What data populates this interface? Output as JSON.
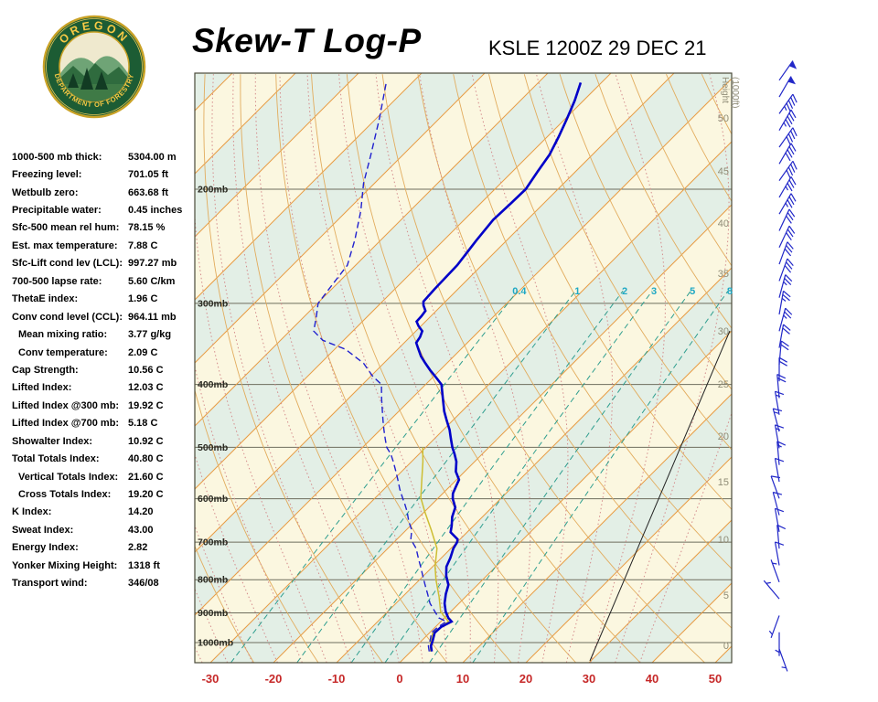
{
  "header": {
    "title": "Skew-T Log-P",
    "station": "KSLE 1200Z 29 DEC 21"
  },
  "logo": {
    "top_text": "OREGON",
    "bottom_text": "DEPARTMENT OF FORESTRY"
  },
  "stats": {
    "rows": [
      {
        "label": "1000-500 mb thick:",
        "value": "5304.00 m"
      },
      {
        "label": "Freezing level:",
        "value": "701.05 ft"
      },
      {
        "label": "Wetbulb zero:",
        "value": "663.68 ft"
      },
      {
        "label": "Precipitable water:",
        "value": "0.45 inches"
      },
      {
        "label": "Sfc-500 mean rel hum:",
        "value": "78.15 %"
      },
      {
        "label": "Est. max temperature:",
        "value": "7.88 C"
      },
      {
        "label": "Sfc-Lift cond lev (LCL):",
        "value": "997.27 mb"
      },
      {
        "label": "700-500 lapse rate:",
        "value": "5.60 C/km"
      },
      {
        "label": "ThetaE index:",
        "value": "1.96 C"
      },
      {
        "label": "Conv cond level (CCL):",
        "value": "964.11 mb"
      },
      {
        "label": "Mean mixing ratio:",
        "value": "3.77 g/kg",
        "indent": true
      },
      {
        "label": "Conv temperature:",
        "value": "2.09 C",
        "indent": true
      },
      {
        "label": "Cap Strength:",
        "value": "10.56 C"
      },
      {
        "label": "Lifted Index:",
        "value": "12.03 C"
      },
      {
        "label": "Lifted Index @300 mb:",
        "value": "19.92 C"
      },
      {
        "label": "Lifted Index @700 mb:",
        "value": "5.18 C"
      },
      {
        "label": "Showalter Index:",
        "value": "10.92 C"
      },
      {
        "label": "Total Totals Index:",
        "value": "40.80 C"
      },
      {
        "label": "Vertical Totals Index:",
        "value": "21.60 C",
        "indent": true
      },
      {
        "label": "Cross Totals Index:",
        "value": "19.20 C",
        "indent": true
      },
      {
        "label": "K Index:",
        "value": "14.20"
      },
      {
        "label": "Sweat Index:",
        "value": "43.00"
      },
      {
        "label": "Energy Index:",
        "value": "2.82"
      },
      {
        "label": "Yonker Mixing Height:",
        "value": "1318 ft"
      },
      {
        "label": "Transport wind:",
        "value": "346/08"
      }
    ]
  },
  "colors": {
    "temperature": "#0000C8",
    "dewpoint": "#2020CF",
    "wetbulb": "#CDBE33",
    "isotherm": "#E89C45",
    "dry_adiabat": "#E2AC5E",
    "moist_adiabat": "#D48C8C",
    "mixing_ratio": "#2F9E8F",
    "mixing_label": "#1FA8C4",
    "isobar": "#6E6E5E",
    "temp_tick": "#C62828",
    "height_label": "#8F8C76",
    "band_cream": "#FBF7E0",
    "band_green": "#E3EFE6",
    "wind_barb": "#2228C8",
    "frame": "#4A4A3A",
    "reference_line": "#222222",
    "pressure_label": "#2A2A22"
  },
  "chart_data": {
    "type": "line",
    "title": "Skew-T Log-P",
    "subtitle": "KSLE 1200Z 29 DEC 21",
    "x_axis": {
      "units": "C",
      "ticks": [
        -30,
        -20,
        -10,
        0,
        10,
        20,
        30,
        40,
        50
      ]
    },
    "y_axis": {
      "units": "mb",
      "scale": "log",
      "ticks": [
        200,
        300,
        400,
        500,
        600,
        700,
        800,
        900,
        1000
      ],
      "labels": [
        "200mb",
        "300mb",
        "400mb",
        "500mb",
        "600mb",
        "700mb",
        "800mb",
        "900mb",
        "1000mb"
      ]
    },
    "height_axis": {
      "title": "Height (1000ft)",
      "ticks": [
        0,
        5,
        10,
        15,
        20,
        25,
        30,
        35,
        40,
        45,
        50
      ]
    },
    "mixing_ratio_g_kg": [
      0.4,
      1,
      2,
      3,
      5,
      8
    ],
    "series": [
      {
        "name": "temperature",
        "style": "solid",
        "points": [
          [
            1032,
            3.3
          ],
          [
            1012,
            2.3
          ],
          [
            992,
            1.7
          ],
          [
            966,
            0.8
          ],
          [
            946,
            0.9
          ],
          [
            928,
            1.7
          ],
          [
            916,
            0.6
          ],
          [
            896,
            -0.8
          ],
          [
            870,
            -2.3
          ],
          [
            841,
            -3.6
          ],
          [
            815,
            -4.6
          ],
          [
            789,
            -6.4
          ],
          [
            764,
            -7.8
          ],
          [
            740,
            -8.6
          ],
          [
            716,
            -9.6
          ],
          [
            700,
            -10.0
          ],
          [
            693,
            -10.4
          ],
          [
            676,
            -12.6
          ],
          [
            660,
            -13.5
          ],
          [
            640,
            -14.8
          ],
          [
            619,
            -15.8
          ],
          [
            600,
            -17.6
          ],
          [
            589,
            -18.4
          ],
          [
            575,
            -19.0
          ],
          [
            561,
            -19.6
          ],
          [
            545,
            -21.4
          ],
          [
            526,
            -22.9
          ],
          [
            512,
            -24.4
          ],
          [
            500,
            -25.8
          ],
          [
            485,
            -27.4
          ],
          [
            470,
            -29.0
          ],
          [
            455,
            -30.9
          ],
          [
            440,
            -32.8
          ],
          [
            420,
            -35.1
          ],
          [
            400,
            -37.5
          ],
          [
            390,
            -39.5
          ],
          [
            380,
            -41.6
          ],
          [
            371,
            -43.4
          ],
          [
            362,
            -45.2
          ],
          [
            352,
            -46.9
          ],
          [
            345,
            -48.1
          ],
          [
            338,
            -48.4
          ],
          [
            331,
            -49.0
          ],
          [
            325,
            -50.4
          ],
          [
            320,
            -51.4
          ],
          [
            314,
            -51.5
          ],
          [
            308,
            -51.7
          ],
          [
            302,
            -52.9
          ],
          [
            298,
            -53.5
          ],
          [
            285,
            -53.7
          ],
          [
            262,
            -53.9
          ],
          [
            240,
            -54.8
          ],
          [
            223,
            -55.4
          ],
          [
            210,
            -55.2
          ],
          [
            200,
            -55.1
          ],
          [
            188,
            -56.0
          ],
          [
            177,
            -56.8
          ],
          [
            166,
            -58.2
          ],
          [
            156,
            -59.7
          ],
          [
            146,
            -61.4
          ],
          [
            137,
            -63.3
          ]
        ]
      },
      {
        "name": "dewpoint",
        "style": "dashed",
        "points": [
          [
            1032,
            2.9
          ],
          [
            1012,
            1.9
          ],
          [
            992,
            1.3
          ],
          [
            966,
            0.3
          ],
          [
            946,
            0.4
          ],
          [
            928,
            0.9
          ],
          [
            916,
            -0.9
          ],
          [
            896,
            -2.5
          ],
          [
            870,
            -4.6
          ],
          [
            841,
            -6.5
          ],
          [
            815,
            -8.3
          ],
          [
            789,
            -10.1
          ],
          [
            764,
            -11.9
          ],
          [
            740,
            -13.7
          ],
          [
            716,
            -15.5
          ],
          [
            693,
            -17.8
          ],
          [
            671,
            -19.1
          ],
          [
            650,
            -21.0
          ],
          [
            628,
            -22.8
          ],
          [
            612,
            -24.3
          ],
          [
            598,
            -25.7
          ],
          [
            580,
            -27.5
          ],
          [
            561,
            -29.3
          ],
          [
            543,
            -31.1
          ],
          [
            526,
            -32.9
          ],
          [
            512,
            -34.5
          ],
          [
            500,
            -36.2
          ],
          [
            485,
            -37.8
          ],
          [
            470,
            -39.4
          ],
          [
            455,
            -41.0
          ],
          [
            440,
            -42.6
          ],
          [
            420,
            -44.8
          ],
          [
            400,
            -47.0
          ],
          [
            389,
            -49.6
          ],
          [
            371,
            -53.2
          ],
          [
            353,
            -58.3
          ],
          [
            342,
            -63.3
          ],
          [
            331,
            -66.2
          ],
          [
            315,
            -68.0
          ],
          [
            300,
            -69.9
          ],
          [
            281,
            -70.6
          ],
          [
            262,
            -71.3
          ],
          [
            239,
            -74.2
          ],
          [
            216,
            -77.8
          ],
          [
            196,
            -81.7
          ],
          [
            177,
            -85.1
          ],
          [
            156,
            -89.4
          ],
          [
            137,
            -94.1
          ]
        ]
      },
      {
        "name": "wetbulb",
        "style": "solid",
        "points": [
          [
            1032,
            3.1
          ],
          [
            1000,
            1.7
          ],
          [
            966,
            0.5
          ],
          [
            928,
            1.2
          ],
          [
            896,
            -1.6
          ],
          [
            850,
            -4.2
          ],
          [
            800,
            -7.4
          ],
          [
            764,
            -9.6
          ],
          [
            716,
            -12.2
          ],
          [
            671,
            -16.0
          ],
          [
            628,
            -20.0
          ],
          [
            598,
            -22.8
          ],
          [
            561,
            -25.5
          ],
          [
            526,
            -28.2
          ],
          [
            500,
            -30.5
          ]
        ]
      }
    ],
    "winds_dir_spd": [
      [
        160,
        4
      ],
      [
        180,
        5
      ],
      [
        200,
        6
      ],
      [
        320,
        5
      ],
      [
        340,
        7
      ],
      [
        350,
        8
      ],
      [
        355,
        9
      ],
      [
        350,
        10
      ],
      [
        345,
        10
      ],
      [
        340,
        12
      ],
      [
        350,
        12
      ],
      [
        355,
        14
      ],
      [
        350,
        15
      ],
      [
        345,
        15
      ],
      [
        350,
        17
      ],
      [
        355,
        18
      ],
      [
        360,
        20
      ],
      [
        5,
        20
      ],
      [
        10,
        22
      ],
      [
        15,
        24
      ],
      [
        10,
        25
      ],
      [
        15,
        26
      ],
      [
        20,
        28
      ],
      [
        20,
        30
      ],
      [
        25,
        30
      ],
      [
        25,
        32
      ],
      [
        30,
        34
      ],
      [
        30,
        35
      ],
      [
        35,
        38
      ],
      [
        30,
        40
      ],
      [
        35,
        42
      ],
      [
        30,
        44
      ],
      [
        35,
        46
      ],
      [
        30,
        48
      ],
      [
        35,
        50
      ]
    ]
  }
}
